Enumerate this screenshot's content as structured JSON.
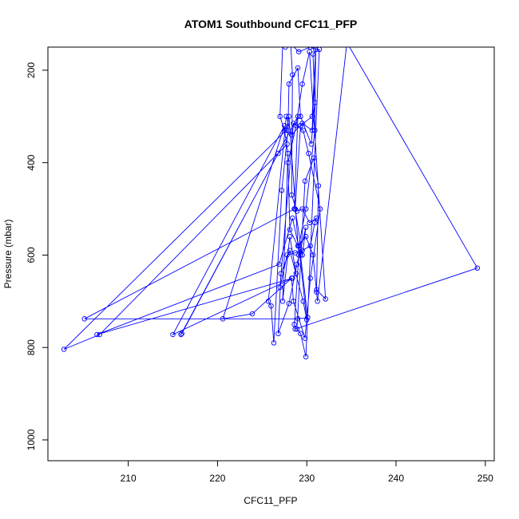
{
  "chart_data": {
    "type": "line",
    "title": "ATOM1 Southbound CFC11_PFP",
    "xlabel": "CFC11_PFP",
    "ylabel": "Pressure (mbar)",
    "xlim": [
      201,
      251
    ],
    "ylim": [
      1045,
      150
    ],
    "y_axis_reversed": true,
    "x_ticks": [
      210,
      220,
      230,
      240,
      250
    ],
    "y_ticks": [
      200,
      400,
      600,
      800,
      1000
    ],
    "grid": false,
    "legend": "none",
    "series_color": "#0000ff",
    "marker": "open-circle",
    "series": [
      {
        "points": [
          [
            227.6,
            150
          ],
          [
            228.3,
            145
          ],
          [
            229.1,
            160
          ],
          [
            230.4,
            150
          ],
          [
            231.0,
            155
          ],
          [
            230.6,
            300
          ],
          [
            229.3,
            320
          ],
          [
            228.7,
            500
          ],
          [
            229.5,
            600
          ],
          [
            229.9,
            540
          ],
          [
            228.9,
            620
          ],
          [
            228.0,
            705
          ],
          [
            226.8,
            770
          ],
          [
            227.1,
            640
          ],
          [
            228.1,
            590
          ],
          [
            229.6,
            700
          ],
          [
            230.0,
            740
          ],
          [
            229.1,
            580
          ],
          [
            229.9,
            500
          ],
          [
            230.9,
            330
          ],
          [
            231.0,
            150
          ],
          [
            230.6,
            330
          ],
          [
            229.5,
            315
          ],
          [
            228.3,
            340
          ],
          [
            227.7,
            300
          ],
          [
            225.7,
            700
          ],
          [
            226.0,
            710
          ],
          [
            226.3,
            790
          ],
          [
            227.2,
            460
          ],
          [
            227.9,
            330
          ],
          [
            228.0,
            230
          ],
          [
            229.0,
            195
          ],
          [
            229.3,
            300
          ],
          [
            230.5,
            360
          ],
          [
            230.9,
            270
          ],
          [
            230.7,
            165
          ],
          [
            231.4,
            155
          ],
          [
            229.9,
            820
          ],
          [
            229.3,
            770
          ],
          [
            228.9,
            760
          ],
          [
            229.8,
            440
          ],
          [
            230.8,
            390
          ],
          [
            231.3,
            450
          ],
          [
            231.1,
            675
          ],
          [
            232.1,
            695
          ],
          [
            230.3,
            160
          ],
          [
            229.5,
            230
          ],
          [
            228.8,
            320
          ],
          [
            227.9,
            400
          ],
          [
            228.1,
            545
          ],
          [
            229.0,
            580
          ],
          [
            229.9,
            560
          ],
          [
            230.7,
            600
          ],
          [
            231.1,
            680
          ],
          [
            231.2,
            700
          ],
          [
            234.5,
            140
          ],
          [
            249.1,
            628
          ],
          [
            228.7,
            760
          ],
          [
            228.6,
            750
          ],
          [
            229.1,
            600
          ],
          [
            228.0,
            300
          ],
          [
            227.7,
            330
          ],
          [
            202.8,
            804
          ],
          [
            206.8,
            772
          ],
          [
            227.8,
            360
          ],
          [
            226.8,
            380
          ],
          [
            215.9,
            772
          ],
          [
            216.0,
            770
          ],
          [
            229.0,
            300
          ],
          [
            228.6,
            500
          ],
          [
            205.1,
            738
          ],
          [
            229.0,
            738
          ],
          [
            230.1,
            735
          ],
          [
            229.3,
            600
          ],
          [
            228.4,
            520
          ],
          [
            226.9,
            620
          ],
          [
            206.5,
            772
          ],
          [
            228.4,
            650
          ],
          [
            215.0,
            772
          ],
          [
            227.5,
            320
          ],
          [
            220.6,
            738
          ],
          [
            223.9,
            727
          ],
          [
            228.3,
            650
          ],
          [
            228.5,
            700
          ],
          [
            229.8,
            780
          ],
          [
            230.4,
            650
          ],
          [
            231.5,
            500
          ],
          [
            230.2,
            380
          ],
          [
            229.6,
            330
          ],
          [
            228.5,
            315
          ],
          [
            227.0,
            670
          ],
          [
            227.8,
            600
          ],
          [
            228.7,
            595
          ],
          [
            229.5,
            590
          ],
          [
            230.4,
            580
          ],
          [
            230.9,
            530
          ],
          [
            231.1,
            520
          ],
          [
            230.3,
            530
          ],
          [
            229.5,
            500
          ],
          [
            228.9,
            505
          ],
          [
            228.3,
            470
          ],
          [
            228.4,
            210
          ],
          [
            228.2,
            145
          ],
          [
            227.3,
            145
          ],
          [
            227.0,
            300
          ],
          [
            227.5,
            330
          ],
          [
            227.9,
            380
          ],
          [
            227.3,
            700
          ],
          [
            228.1,
            560
          ],
          [
            228.8,
            640
          ]
        ]
      }
    ]
  }
}
